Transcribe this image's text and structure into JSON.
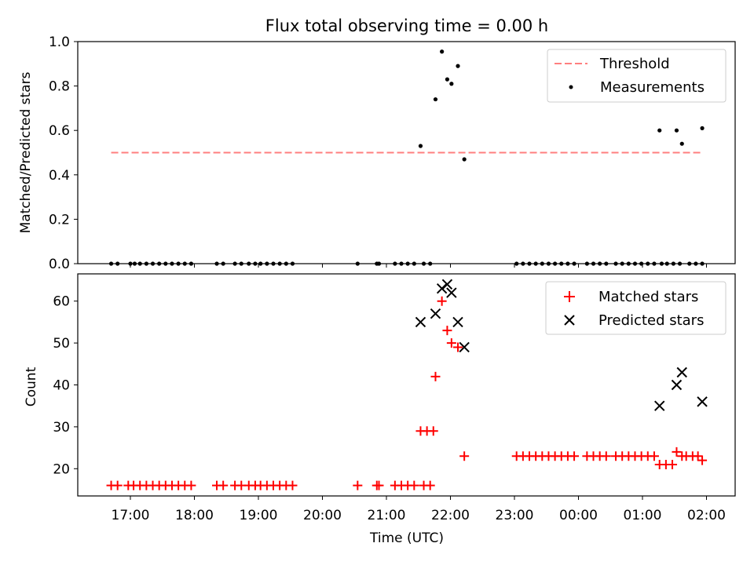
{
  "chart_data": [
    {
      "type": "scatter",
      "title": "Flux total observing time = 0.00 h",
      "xlabel": "",
      "ylabel": "Matched/Predicted stars",
      "ylim": [
        0,
        1.0
      ],
      "yticks": [
        0.0,
        0.2,
        0.4,
        0.6,
        0.8,
        1.0
      ],
      "ytick_labels": [
        "0.0",
        "0.2",
        "0.4",
        "0.6",
        "0.8",
        "1.0"
      ],
      "grid": false,
      "legend_position": "top-right",
      "threshold": {
        "name": "Threshold",
        "y": 0.5,
        "x_start": "16:42",
        "x_end": "01:56",
        "color": "#ff7f7f",
        "style": "dashed"
      },
      "series": [
        {
          "name": "Measurements",
          "marker": "dot",
          "color": "#000000",
          "points": [
            [
              "16:42",
              0
            ],
            [
              "16:48",
              0
            ],
            [
              "17:00",
              0
            ],
            [
              "17:04",
              0
            ],
            [
              "17:09",
              0
            ],
            [
              "17:15",
              0
            ],
            [
              "17:21",
              0
            ],
            [
              "17:27",
              0
            ],
            [
              "17:33",
              0
            ],
            [
              "17:39",
              0
            ],
            [
              "17:45",
              0
            ],
            [
              "17:51",
              0
            ],
            [
              "17:57",
              0
            ],
            [
              "18:21",
              0
            ],
            [
              "18:27",
              0
            ],
            [
              "18:38",
              0
            ],
            [
              "18:44",
              0
            ],
            [
              "18:51",
              0
            ],
            [
              "18:57",
              0
            ],
            [
              "19:02",
              0
            ],
            [
              "19:08",
              0
            ],
            [
              "19:14",
              0
            ],
            [
              "19:20",
              0
            ],
            [
              "19:26",
              0
            ],
            [
              "19:32",
              0
            ],
            [
              "20:33",
              0
            ],
            [
              "20:51",
              0
            ],
            [
              "20:53",
              0
            ],
            [
              "21:08",
              0
            ],
            [
              "21:14",
              0
            ],
            [
              "21:20",
              0
            ],
            [
              "21:26",
              0
            ],
            [
              "21:35",
              0
            ],
            [
              "21:41",
              0
            ],
            [
              "21:32",
              0.53
            ],
            [
              "21:46",
              0.74
            ],
            [
              "21:52",
              0.955
            ],
            [
              "21:57",
              0.83
            ],
            [
              "22:01",
              0.81
            ],
            [
              "22:07",
              0.89
            ],
            [
              "22:13",
              0.47
            ],
            [
              "23:02",
              0
            ],
            [
              "23:08",
              0
            ],
            [
              "23:14",
              0
            ],
            [
              "23:20",
              0
            ],
            [
              "23:26",
              0
            ],
            [
              "23:32",
              0
            ],
            [
              "23:38",
              0
            ],
            [
              "23:44",
              0
            ],
            [
              "23:50",
              0
            ],
            [
              "23:56",
              0
            ],
            [
              "00:08",
              0
            ],
            [
              "00:14",
              0
            ],
            [
              "00:20",
              0
            ],
            [
              "00:26",
              0
            ],
            [
              "00:35",
              0
            ],
            [
              "00:41",
              0
            ],
            [
              "00:47",
              0
            ],
            [
              "00:53",
              0
            ],
            [
              "00:59",
              0
            ],
            [
              "01:05",
              0
            ],
            [
              "01:11",
              0
            ],
            [
              "01:18",
              0
            ],
            [
              "01:23",
              0
            ],
            [
              "01:29",
              0
            ],
            [
              "01:35",
              0
            ],
            [
              "01:44",
              0
            ],
            [
              "01:50",
              0
            ],
            [
              "01:56",
              0
            ],
            [
              "01:16",
              0.6
            ],
            [
              "01:32",
              0.6
            ],
            [
              "01:37",
              0.54
            ],
            [
              "01:56",
              0.61
            ]
          ]
        }
      ]
    },
    {
      "type": "scatter",
      "title": "",
      "xlabel": "Time (UTC)",
      "ylabel": "Count",
      "ylim": [
        13.5,
        66.5
      ],
      "yticks": [
        20,
        30,
        40,
        50,
        60
      ],
      "ytick_labels": [
        "20",
        "30",
        "40",
        "50",
        "60"
      ],
      "xtick_labels": [
        "17:00",
        "18:00",
        "19:00",
        "20:00",
        "21:00",
        "22:00",
        "23:00",
        "00:00",
        "01:00",
        "02:00"
      ],
      "grid": false,
      "legend_position": "top-right",
      "series": [
        {
          "name": "Matched stars",
          "marker": "plus",
          "color": "#ff0000",
          "points": [
            [
              "16:42",
              16
            ],
            [
              "16:48",
              16
            ],
            [
              "16:58",
              16
            ],
            [
              "17:03",
              16
            ],
            [
              "17:09",
              16
            ],
            [
              "17:15",
              16
            ],
            [
              "17:21",
              16
            ],
            [
              "17:27",
              16
            ],
            [
              "17:33",
              16
            ],
            [
              "17:39",
              16
            ],
            [
              "17:45",
              16
            ],
            [
              "17:51",
              16
            ],
            [
              "17:57",
              16
            ],
            [
              "18:21",
              16
            ],
            [
              "18:27",
              16
            ],
            [
              "18:38",
              16
            ],
            [
              "18:44",
              16
            ],
            [
              "18:51",
              16
            ],
            [
              "18:57",
              16
            ],
            [
              "19:02",
              16
            ],
            [
              "19:08",
              16
            ],
            [
              "19:14",
              16
            ],
            [
              "19:20",
              16
            ],
            [
              "19:26",
              16
            ],
            [
              "19:32",
              16
            ],
            [
              "20:33",
              16
            ],
            [
              "20:51",
              16
            ],
            [
              "20:53",
              16
            ],
            [
              "21:08",
              16
            ],
            [
              "21:14",
              16
            ],
            [
              "21:20",
              16
            ],
            [
              "21:26",
              16
            ],
            [
              "21:35",
              16
            ],
            [
              "21:41",
              16
            ],
            [
              "21:32",
              29
            ],
            [
              "21:38",
              29
            ],
            [
              "21:44",
              29
            ],
            [
              "21:46",
              42
            ],
            [
              "21:52",
              60
            ],
            [
              "21:57",
              53
            ],
            [
              "22:01",
              50
            ],
            [
              "22:07",
              49
            ],
            [
              "22:13",
              23
            ],
            [
              "23:02",
              23
            ],
            [
              "23:08",
              23
            ],
            [
              "23:14",
              23
            ],
            [
              "23:20",
              23
            ],
            [
              "23:26",
              23
            ],
            [
              "23:32",
              23
            ],
            [
              "23:38",
              23
            ],
            [
              "23:44",
              23
            ],
            [
              "23:50",
              23
            ],
            [
              "23:56",
              23
            ],
            [
              "00:08",
              23
            ],
            [
              "00:14",
              23
            ],
            [
              "00:20",
              23
            ],
            [
              "00:26",
              23
            ],
            [
              "00:35",
              23
            ],
            [
              "00:41",
              23
            ],
            [
              "00:47",
              23
            ],
            [
              "00:53",
              23
            ],
            [
              "00:59",
              23
            ],
            [
              "01:05",
              23
            ],
            [
              "01:11",
              23
            ],
            [
              "01:16",
              21
            ],
            [
              "01:22",
              21
            ],
            [
              "01:28",
              21
            ],
            [
              "01:32",
              24
            ],
            [
              "01:37",
              23
            ],
            [
              "01:41",
              23
            ],
            [
              "01:47",
              23
            ],
            [
              "01:52",
              23
            ],
            [
              "01:56",
              22
            ]
          ]
        },
        {
          "name": "Predicted stars",
          "marker": "x",
          "color": "#000000",
          "points": [
            [
              "21:32",
              55
            ],
            [
              "21:46",
              57
            ],
            [
              "21:52",
              63
            ],
            [
              "21:57",
              64
            ],
            [
              "22:01",
              62
            ],
            [
              "22:07",
              55
            ],
            [
              "22:13",
              49
            ],
            [
              "01:16",
              35
            ],
            [
              "01:32",
              40
            ],
            [
              "01:37",
              43
            ],
            [
              "01:56",
              36
            ]
          ]
        }
      ]
    }
  ]
}
